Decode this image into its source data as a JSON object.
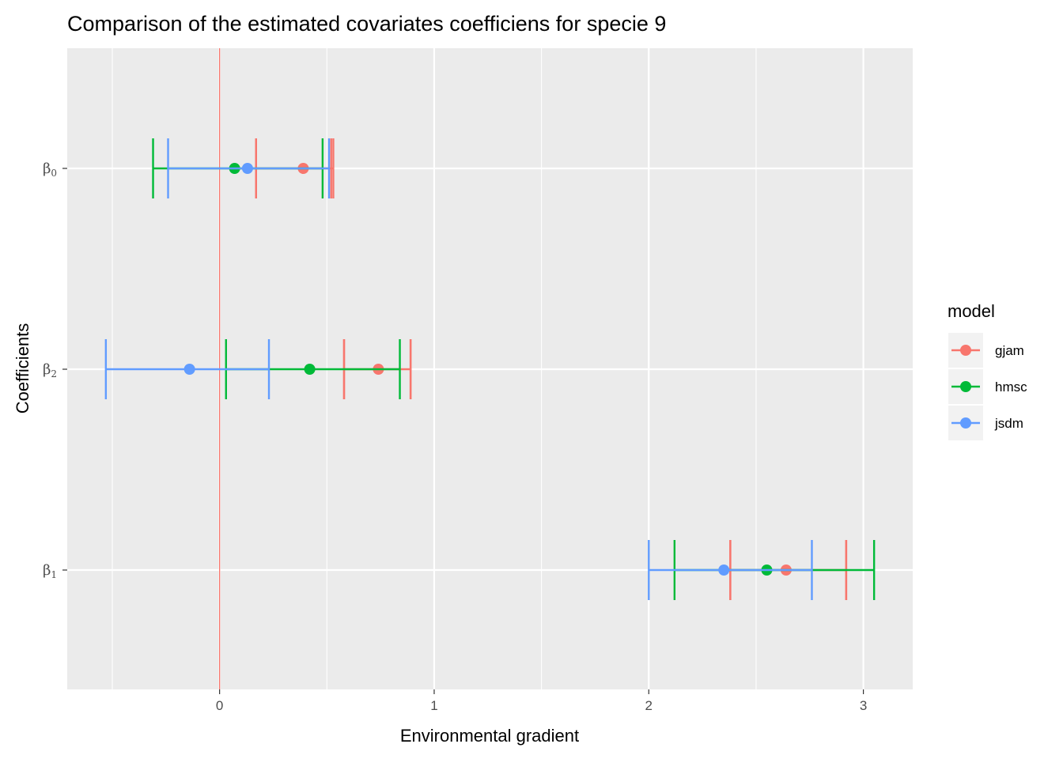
{
  "chart_data": {
    "type": "errorbar-point",
    "title": "Comparison of the estimated covariates coefficiens for specie  9",
    "xlabel": "Environmental gradient",
    "ylabel": "Coefficients",
    "xlim": [
      -0.71,
      3.23
    ],
    "x_ticks": [
      0,
      1,
      2,
      3
    ],
    "x_tick_labels": [
      "0",
      "1",
      "2",
      "3"
    ],
    "categories": [
      {
        "label": "β",
        "sub": "0"
      },
      {
        "label": "β",
        "sub": "2"
      },
      {
        "label": "β",
        "sub": "1"
      }
    ],
    "reference_line": {
      "x": 0,
      "color": "#F8766D"
    },
    "grid": true,
    "legend": {
      "title": "model",
      "position": "right"
    },
    "series": [
      {
        "name": "gjam",
        "color": "#F8766D",
        "points": [
          {
            "category": 0,
            "estimate": 0.39,
            "ci_outer": [
              0.17,
              0.53
            ],
            "ci_inner": [
              0.17,
              0.52
            ]
          },
          {
            "category": 1,
            "estimate": 0.74,
            "ci_outer": [
              0.58,
              0.89
            ],
            "ci_inner": [
              0.58,
              0.89
            ]
          },
          {
            "category": 2,
            "estimate": 2.64,
            "ci_outer": [
              2.38,
              2.92
            ],
            "ci_inner": [
              2.38,
              2.92
            ]
          }
        ]
      },
      {
        "name": "hmsc",
        "color": "#00BA38",
        "points": [
          {
            "category": 0,
            "estimate": 0.07,
            "ci_outer": [
              -0.31,
              0.48
            ]
          },
          {
            "category": 1,
            "estimate": 0.42,
            "ci_outer": [
              0.03,
              0.84
            ]
          },
          {
            "category": 2,
            "estimate": 2.55,
            "ci_outer": [
              2.12,
              3.05
            ]
          }
        ]
      },
      {
        "name": "jsdm",
        "color": "#619CFF",
        "points": [
          {
            "category": 0,
            "estimate": 0.13,
            "ci_outer": [
              -0.24,
              0.51
            ]
          },
          {
            "category": 1,
            "estimate": -0.14,
            "ci_outer": [
              -0.53,
              0.23
            ]
          },
          {
            "category": 2,
            "estimate": 2.35,
            "ci_outer": [
              2.0,
              2.76
            ]
          }
        ]
      }
    ]
  }
}
